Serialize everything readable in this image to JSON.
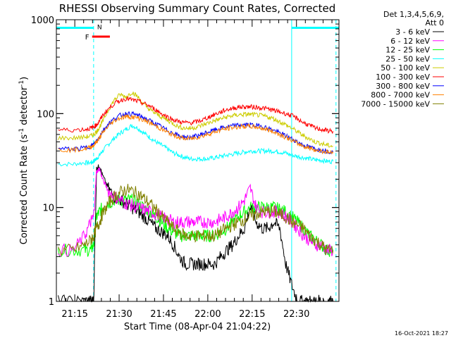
{
  "chart_data": {
    "type": "line",
    "title": "RHESSI Observing Summary Count Rates, Corrected",
    "xlabel": "Start Time (08-Apr-04 21:04:22)",
    "ylabel": "Corrected Count Rate (s",
    "ylabel_sup1": "-1",
    "ylabel_mid": " detector",
    "ylabel_sup2": "-1",
    "ylabel_end": ")",
    "y_scale": "log",
    "ylim": [
      1,
      1000
    ],
    "xlim": [
      4.4,
      100
    ],
    "x_units": "minutes after 21:04:22",
    "grid": false,
    "legend_position": "right-outside",
    "y_ticks": [
      {
        "value": 1,
        "label": "1"
      },
      {
        "value": 10,
        "label": "10"
      },
      {
        "value": 100,
        "label": "100"
      },
      {
        "value": 1000,
        "label": "1000"
      }
    ],
    "x_ticks": [
      {
        "value": 10.63,
        "label": "21:15"
      },
      {
        "value": 25.63,
        "label": "21:30"
      },
      {
        "value": 40.63,
        "label": "21:45"
      },
      {
        "value": 55.63,
        "label": "22:00"
      },
      {
        "value": 70.63,
        "label": "22:15"
      },
      {
        "value": 85.63,
        "label": "22:30"
      }
    ],
    "legend_header": [
      "Det 1,3,4,5,6,9,",
      "Att 0"
    ],
    "series": [
      {
        "name": "3 - 6 keV",
        "color": "#000000",
        "x": [
          5,
          10,
          14,
          16,
          17,
          18,
          19,
          20,
          22,
          24,
          26,
          28,
          30,
          32,
          34,
          36,
          38,
          40,
          42,
          44,
          46,
          48,
          50,
          52,
          54,
          56,
          58,
          60,
          62,
          64,
          66,
          68,
          70,
          72,
          74,
          76,
          78,
          80,
          82,
          84,
          86,
          88,
          90,
          92,
          94,
          96,
          98
        ],
        "y": [
          1,
          1,
          1,
          1,
          1,
          26,
          28,
          22,
          16,
          13,
          12,
          11,
          10,
          9,
          8,
          7,
          6,
          5.5,
          5,
          4,
          3,
          2.5,
          2.5,
          2.5,
          2.5,
          2.5,
          2.5,
          3,
          3.5,
          4,
          5,
          6,
          10,
          7,
          6,
          6,
          7,
          6,
          2.5,
          1.5,
          1,
          1,
          1,
          1,
          1,
          1,
          1
        ]
      },
      {
        "name": "6 - 12 keV",
        "color": "#ff00ff",
        "x": [
          5,
          10,
          14,
          16,
          17,
          18,
          19,
          20,
          22,
          24,
          26,
          28,
          30,
          32,
          34,
          36,
          38,
          40,
          42,
          44,
          46,
          48,
          50,
          52,
          54,
          56,
          58,
          60,
          62,
          64,
          66,
          68,
          70,
          72,
          74,
          76,
          78,
          80,
          82,
          84,
          86,
          88,
          90,
          92,
          94,
          96,
          98
        ],
        "y": [
          3.5,
          3.5,
          5,
          7,
          8,
          24,
          26,
          20,
          15,
          13,
          12,
          11,
          10.5,
          10,
          9.5,
          9,
          8.5,
          8,
          7.5,
          7,
          7,
          7,
          7,
          7,
          7,
          7,
          7,
          7.5,
          8,
          9,
          10,
          12,
          16,
          10,
          9,
          9,
          9,
          9,
          8,
          7,
          6,
          5,
          4.5,
          4,
          4,
          3.5,
          3.5
        ]
      },
      {
        "name": "12 - 25 keV",
        "color": "#00ff00",
        "x": [
          5,
          10,
          14,
          16,
          17,
          18,
          19,
          20,
          22,
          24,
          26,
          28,
          30,
          32,
          34,
          36,
          38,
          40,
          42,
          44,
          46,
          48,
          50,
          52,
          54,
          56,
          58,
          60,
          62,
          64,
          66,
          68,
          70,
          72,
          74,
          76,
          78,
          80,
          82,
          84,
          86,
          88,
          90,
          92,
          94,
          96,
          98
        ],
        "y": [
          3.5,
          3.5,
          3.5,
          3.5,
          4,
          8,
          9,
          10,
          11,
          12,
          12,
          12,
          12,
          11,
          10,
          9,
          8,
          7,
          6,
          5.5,
          5,
          5,
          5,
          5,
          5,
          5,
          5,
          5.5,
          6,
          7,
          8,
          9,
          10,
          10,
          10,
          10,
          10,
          9.5,
          9,
          8,
          7,
          6,
          5,
          4.5,
          4,
          3.5,
          3.5
        ]
      },
      {
        "name": "25 - 50 keV",
        "color": "#00ffff",
        "x": [
          5,
          10,
          14,
          16,
          17,
          18,
          19,
          20,
          22,
          24,
          26,
          28,
          30,
          32,
          34,
          36,
          38,
          40,
          42,
          44,
          46,
          48,
          50,
          52,
          54,
          56,
          58,
          60,
          62,
          64,
          66,
          68,
          70,
          72,
          74,
          76,
          78,
          80,
          82,
          84,
          86,
          88,
          90,
          92,
          94,
          96,
          98
        ],
        "y": [
          29,
          29,
          30,
          30,
          31,
          33,
          36,
          40,
          47,
          55,
          62,
          68,
          75,
          70,
          62,
          56,
          50,
          46,
          42,
          38,
          36,
          34,
          33,
          33,
          33,
          33,
          34,
          35,
          36,
          37,
          38,
          39,
          40,
          40,
          40,
          40,
          40,
          39,
          38,
          36,
          35,
          34,
          33,
          32,
          32,
          31,
          31
        ]
      },
      {
        "name": "50 - 100 keV",
        "color": "#cccc00",
        "x": [
          5,
          10,
          14,
          16,
          17,
          18,
          19,
          20,
          22,
          24,
          26,
          28,
          30,
          32,
          34,
          36,
          38,
          40,
          42,
          44,
          46,
          48,
          50,
          52,
          54,
          56,
          58,
          60,
          62,
          64,
          66,
          68,
          70,
          72,
          74,
          76,
          78,
          80,
          82,
          84,
          86,
          88,
          90,
          92,
          94,
          96,
          98
        ],
        "y": [
          55,
          55,
          56,
          58,
          60,
          64,
          72,
          82,
          110,
          140,
          160,
          150,
          170,
          150,
          125,
          110,
          100,
          92,
          85,
          78,
          72,
          70,
          70,
          72,
          76,
          80,
          84,
          88,
          92,
          95,
          97,
          98,
          98,
          97,
          95,
          92,
          88,
          82,
          76,
          70,
          64,
          58,
          54,
          50,
          48,
          46,
          45
        ]
      },
      {
        "name": "100 - 300 keV",
        "color": "#ff0000",
        "x": [
          5,
          10,
          14,
          16,
          17,
          18,
          19,
          20,
          22,
          24,
          26,
          28,
          30,
          32,
          34,
          36,
          38,
          40,
          42,
          44,
          46,
          48,
          50,
          52,
          54,
          56,
          58,
          60,
          62,
          64,
          66,
          68,
          70,
          72,
          74,
          76,
          78,
          80,
          82,
          84,
          86,
          88,
          90,
          92,
          94,
          96,
          98
        ],
        "y": [
          67,
          67,
          68,
          70,
          72,
          76,
          84,
          95,
          112,
          128,
          138,
          145,
          140,
          135,
          128,
          120,
          110,
          100,
          92,
          86,
          82,
          80,
          80,
          82,
          86,
          92,
          98,
          104,
          110,
          114,
          117,
          118,
          118,
          117,
          115,
          112,
          108,
          104,
          100,
          95,
          88,
          80,
          75,
          70,
          68,
          66,
          65
        ]
      },
      {
        "name": "300 - 800 keV",
        "color": "#0000ff",
        "x": [
          5,
          10,
          14,
          16,
          17,
          18,
          19,
          20,
          22,
          24,
          26,
          28,
          30,
          32,
          34,
          36,
          38,
          40,
          42,
          44,
          46,
          48,
          50,
          52,
          54,
          56,
          58,
          60,
          62,
          64,
          66,
          68,
          70,
          72,
          74,
          76,
          78,
          80,
          82,
          84,
          86,
          88,
          90,
          92,
          94,
          96,
          98
        ],
        "y": [
          42,
          42,
          43,
          45,
          47,
          51,
          57,
          65,
          78,
          88,
          96,
          100,
          99,
          96,
          90,
          84,
          78,
          72,
          66,
          62,
          58,
          56,
          56,
          58,
          61,
          64,
          67,
          70,
          72,
          74,
          75,
          76,
          76,
          75,
          73,
          70,
          66,
          62,
          58,
          54,
          50,
          46,
          44,
          42,
          41,
          40,
          39
        ]
      },
      {
        "name": "800 - 7000 keV",
        "color": "#ff8000",
        "x": [
          5,
          10,
          14,
          16,
          17,
          18,
          19,
          20,
          22,
          24,
          26,
          28,
          30,
          32,
          34,
          36,
          38,
          40,
          42,
          44,
          46,
          48,
          50,
          52,
          54,
          56,
          58,
          60,
          62,
          64,
          66,
          68,
          70,
          72,
          74,
          76,
          78,
          80,
          82,
          84,
          86,
          88,
          90,
          92,
          94,
          96,
          98
        ],
        "y": [
          41,
          41,
          42,
          44,
          46,
          50,
          55,
          62,
          74,
          84,
          90,
          93,
          92,
          90,
          85,
          80,
          74,
          68,
          63,
          59,
          56,
          54,
          54,
          56,
          58,
          61,
          64,
          67,
          69,
          71,
          72,
          73,
          73,
          72,
          70,
          67,
          64,
          60,
          56,
          52,
          48,
          45,
          43,
          41,
          40,
          39,
          38
        ]
      },
      {
        "name": "7000 - 15000 keV",
        "color": "#808000",
        "x": [
          5,
          10,
          14,
          16,
          17,
          18,
          19,
          20,
          22,
          24,
          26,
          28,
          30,
          32,
          34,
          36,
          38,
          40,
          42,
          44,
          46,
          48,
          50,
          52,
          54,
          56,
          58,
          60,
          62,
          64,
          66,
          68,
          70,
          72,
          74,
          76,
          78,
          80,
          82,
          84,
          86,
          88,
          90,
          92,
          94,
          96,
          98
        ],
        "y": [
          3.5,
          3.5,
          4,
          4.5,
          5,
          6,
          7,
          8.5,
          11,
          13,
          14.5,
          15.5,
          15,
          14,
          12.5,
          11,
          9.5,
          8,
          7,
          6,
          5.5,
          5,
          5,
          5,
          5,
          5,
          5,
          5.5,
          6,
          6.5,
          7,
          7.5,
          8,
          8.5,
          9,
          9,
          9,
          8.5,
          8,
          7,
          6.5,
          6,
          5,
          4.5,
          4,
          3.5,
          3.5
        ]
      }
    ],
    "attenuator_flag": {
      "label": "F",
      "color": "#ff0000",
      "x_start": 16.5,
      "x_end": 22.5,
      "value": 660
    },
    "night_flag": {
      "label": "N",
      "color": "#00cccc",
      "value": 820,
      "segments": [
        [
          4.4,
          17.0
        ],
        [
          84.0,
          100.0
        ]
      ]
    },
    "vertical_markers": [
      {
        "x": 4.4,
        "style": "solid",
        "color": "#00ffff"
      },
      {
        "x": 17.0,
        "style": "dashed",
        "color": "#00ffff"
      },
      {
        "x": 84.0,
        "style": "solid",
        "color": "#00ffff"
      },
      {
        "x": 99.0,
        "style": "dashed",
        "color": "#00ffff"
      }
    ],
    "timestamp": "16-Oct-2021 18:27"
  }
}
